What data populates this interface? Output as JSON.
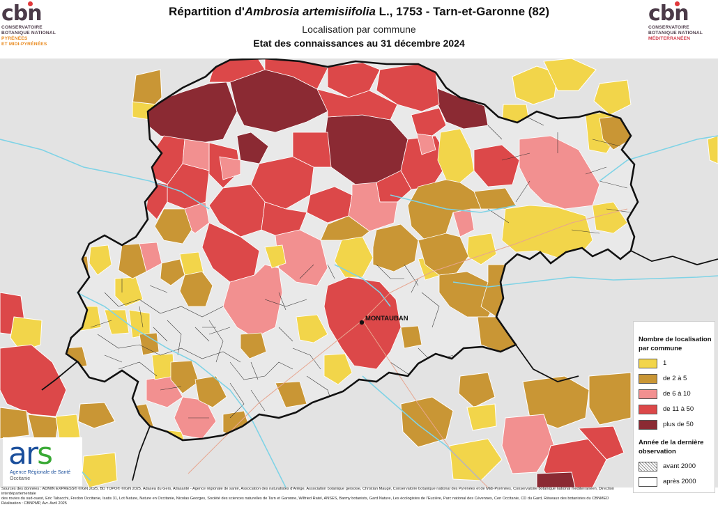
{
  "header": {
    "title_prefix": "Répartition d'",
    "title_species": "Ambrosia artemisiifolia",
    "title_suffix": " L., 1753 - Tarn-et-Garonne (82)",
    "subtitle": "Localisation par commune",
    "subtitle2": "Etat des connaissances au 31 décembre 2024"
  },
  "logos": {
    "left": {
      "word": "cbn",
      "line1": "CONSERVATOIRE",
      "line2": "BOTANIQUE NATIONAL",
      "line3": "PYRÉNÉES",
      "line4": "ET MIDI-PYRÉNÉES"
    },
    "right": {
      "word": "cbn",
      "line1": "CONSERVATOIRE",
      "line2": "BOTANIQUE NATIONAL",
      "line3": "MÉDITERRANÉEN"
    },
    "ars": {
      "word_a": "ar",
      "word_s": "s",
      "line1": "Agence Régionale de Santé",
      "line2": "Occitanie"
    }
  },
  "map": {
    "city_label": "MONTAUBAN",
    "colors": {
      "background": "#e3e3e3",
      "commune_empty": "#e9e9e9",
      "class1": "#f2d54a",
      "class2": "#c99635",
      "class3": "#f29090",
      "class4": "#dc4849",
      "class5": "#8b2a33",
      "river": "#7fd3e6",
      "road": "#e7a58f"
    }
  },
  "legend": {
    "title1": "Nombre de localisation",
    "title2": "par commune",
    "items": [
      {
        "label": "1",
        "color": "#f2d54a"
      },
      {
        "label": "de 2 à 5",
        "color": "#c99635"
      },
      {
        "label": "de 6 à 10",
        "color": "#f29090"
      },
      {
        "label": "de 11 à 50",
        "color": "#dc4849"
      },
      {
        "label": "plus de 50",
        "color": "#8b2a33"
      }
    ],
    "year_title1": "Année de la dernière",
    "year_title2": "observation",
    "year_items": [
      {
        "label": "avant 2000",
        "pattern": "hatched"
      },
      {
        "label": "après 2000",
        "pattern": "plain"
      }
    ]
  },
  "footer": {
    "line1": "Sources des données : ADMIN EXPRESS® ©IGN 2025, BD TOPO® ©IGN 2025, Adasea du Gers, Atlasanté - Agence régionale de santé, Association des naturalistes d'Ariège, Association botanique gersoise, Christian Maugé, Conservatoire botanique national des Pyrénées et de Midi-Pyrénées, Conservatoire botanique national méditerranéen, Direction interdépartementale",
    "line2": "des routes du sud-ouest, Eric Tabacchi, Fredon Occitanie, Isatis 31, Lot Nature, Nature en Occitanie, Nicolas Georges, Société des sciences naturelles de Tarn et Garonne, Wilfried Ratel, ANSES, Barmy botanists, Gard Nature, Les écologistes de l'Euzière, Parc national des Cévennes, Cen Occitanie, CD du Gard, Réseaux des botanistes du CBNMED",
    "line3": "Réalisation : CBNPMP, Avr. Avril 2025"
  }
}
